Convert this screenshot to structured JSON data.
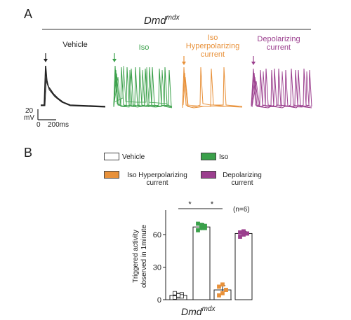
{
  "panels": {
    "a": "A",
    "b": "B"
  },
  "traces": {
    "title_main": "Dmd",
    "title_sup": "mdx",
    "conditions": [
      {
        "label": "Vehicle",
        "color": "#222222"
      },
      {
        "label": "Iso",
        "color": "#3aa04a"
      },
      {
        "label": "Iso Hyperpolarizing current",
        "color": "#e8913a"
      },
      {
        "label": "Depolarizing current",
        "color": "#9b3f8e"
      }
    ],
    "scale_y": "20",
    "scale_y_unit": "mV",
    "scale_x_zero": "0",
    "scale_x": "200ms"
  },
  "legend": [
    {
      "label": "Vehicle",
      "color": "#ffffff"
    },
    {
      "label": "Iso",
      "color": "#3aa04a"
    },
    {
      "label": "Iso Hyperpolarizing current",
      "color": "#e8913a"
    },
    {
      "label": "Depolarizing current",
      "color": "#9b3f8e"
    }
  ],
  "chart_data": {
    "type": "bar",
    "categories": [
      "Vehicle",
      "Iso",
      "Iso Hyperpolarizing current",
      "Depolarizing current"
    ],
    "values": [
      4,
      67,
      9,
      61
    ],
    "errors": [
      2,
      3,
      4,
      2
    ],
    "points": [
      [
        2,
        3,
        5,
        6,
        4,
        3
      ],
      [
        64,
        66,
        68,
        70,
        69,
        66
      ],
      [
        4,
        6,
        9,
        12,
        14,
        9
      ],
      [
        58,
        60,
        61,
        62,
        63,
        61
      ]
    ],
    "point_colors": [
      "#ffffff",
      "#3aa04a",
      "#e8913a",
      "#9b3f8e"
    ],
    "ylabel": "Triggered activity observed in 1minute",
    "yticks": [
      0,
      30,
      60
    ],
    "ylim": [
      0,
      80
    ],
    "xlabel_main": "Dmd",
    "xlabel_sup": "mdx",
    "n_label": "(n=6)",
    "significance": [
      "*",
      "*"
    ]
  }
}
